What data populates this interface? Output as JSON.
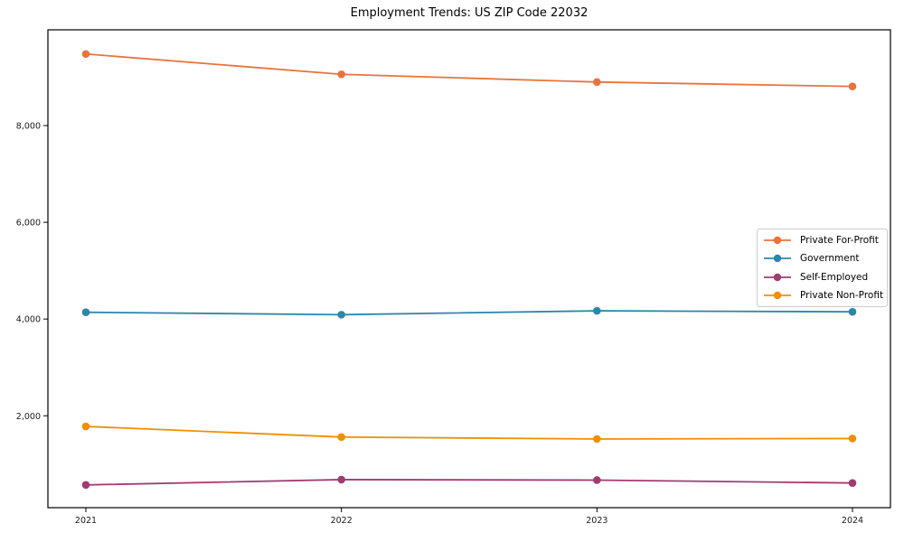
{
  "chart_data": {
    "type": "line",
    "title": "Employment Trends: US ZIP Code 22032",
    "xlabel": "",
    "ylabel": "",
    "categories": [
      "2021",
      "2022",
      "2023",
      "2024"
    ],
    "series": [
      {
        "name": "Private For-Profit",
        "color": "#E8743C",
        "values": [
          9480,
          9060,
          8900,
          8810
        ]
      },
      {
        "name": "Government",
        "color": "#2E86AB",
        "values": [
          4140,
          4090,
          4170,
          4150
        ]
      },
      {
        "name": "Self-Employed",
        "color": "#A23B72",
        "values": [
          570,
          680,
          670,
          610
        ]
      },
      {
        "name": "Private Non-Profit",
        "color": "#F18F01",
        "values": [
          1780,
          1560,
          1520,
          1530
        ]
      }
    ],
    "ylim": [
      100,
      9980
    ],
    "yticks": {
      "values": [
        2000,
        4000,
        6000,
        8000
      ],
      "labels": [
        "2,000",
        "4,000",
        "6,000",
        "8,000"
      ]
    },
    "grid": false,
    "legend_position": "center-right",
    "marker": "circle",
    "axes_color": "#000000",
    "tick_label_color": "#1a1a1a"
  }
}
